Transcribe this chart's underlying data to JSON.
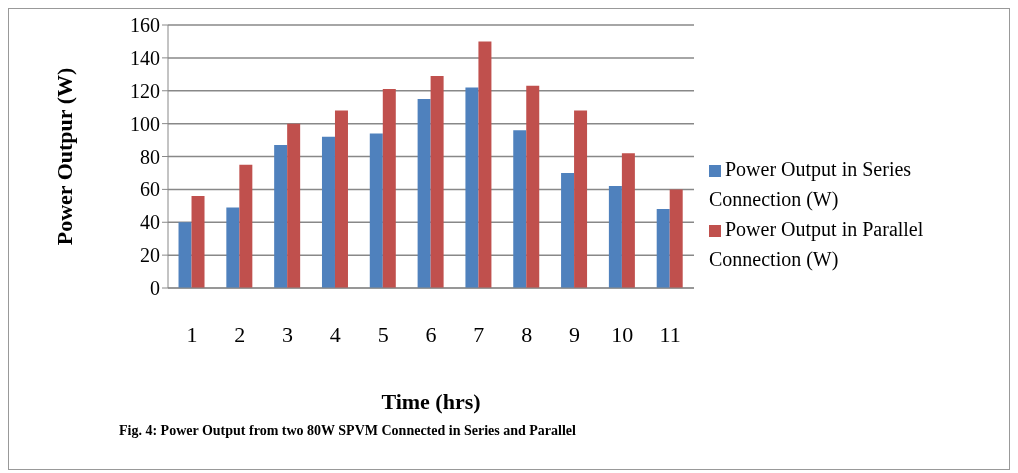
{
  "chart_data": {
    "type": "bar",
    "categories": [
      "1",
      "2",
      "3",
      "4",
      "5",
      "6",
      "7",
      "8",
      "9",
      "10",
      "11"
    ],
    "series": [
      {
        "name": "Power Output in Series Connection (W)",
        "color": "#4f81bd",
        "values": [
          40,
          49,
          87,
          92,
          94,
          115,
          122,
          96,
          70,
          62,
          48
        ]
      },
      {
        "name": "Power Output in Parallel Connection (W)",
        "color": "#c0504d",
        "values": [
          56,
          75,
          100,
          108,
          121,
          129,
          150,
          123,
          108,
          82,
          60
        ]
      }
    ],
    "xlabel": "Time (hrs)",
    "ylabel": "Power Outpur (W)",
    "ylim": [
      0,
      160
    ],
    "yticks": [
      0,
      20,
      40,
      60,
      80,
      100,
      120,
      140,
      160
    ],
    "grid": "y",
    "legend": "right",
    "annotations": [
      "Fig. 4: Power Output from two 80W SPVM Connected in Series and Parallel"
    ]
  }
}
